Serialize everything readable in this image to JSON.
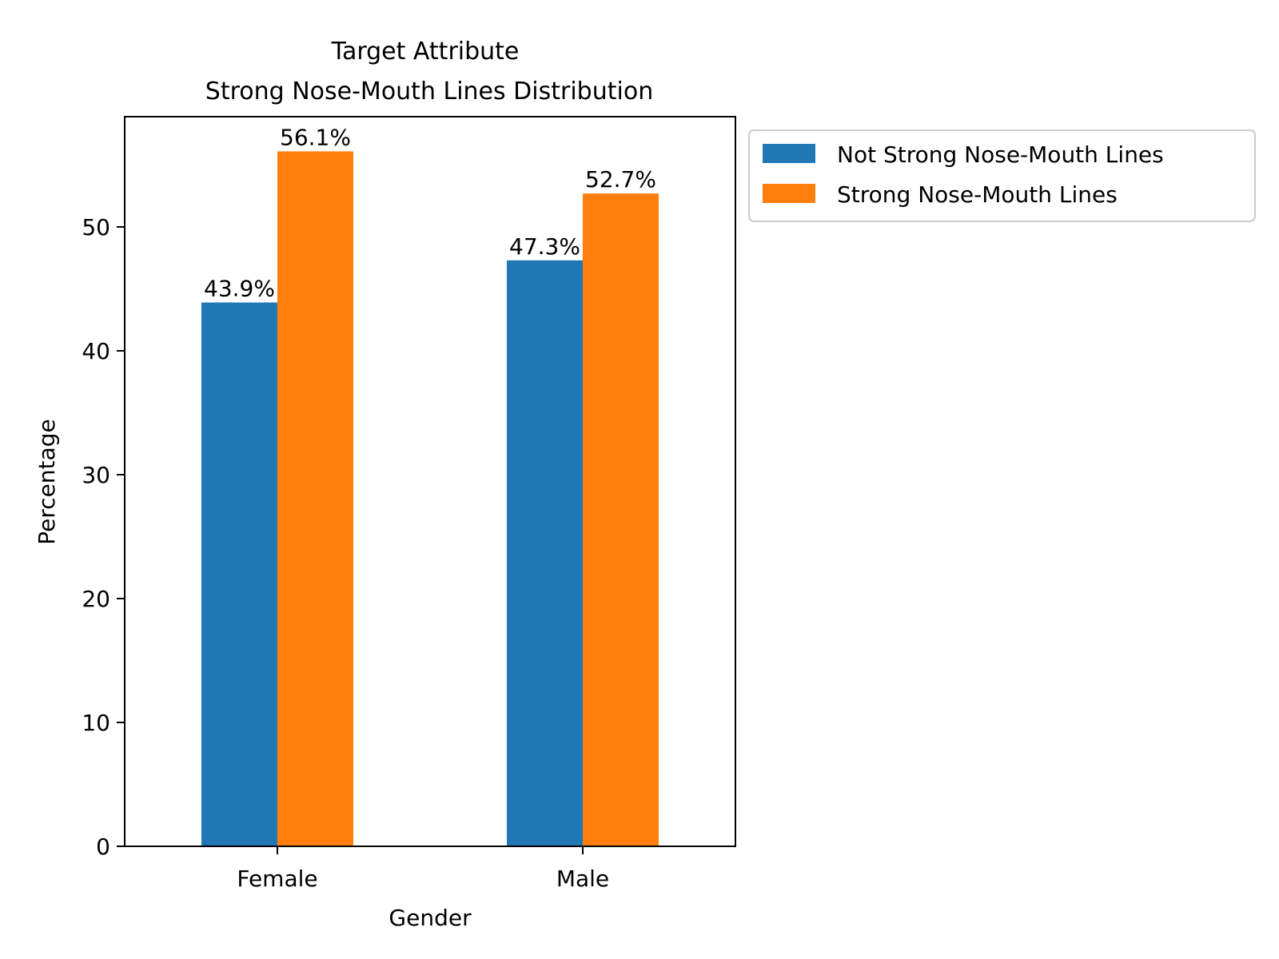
{
  "chart_data": {
    "type": "bar",
    "title_lines": [
      "Target Attribute",
      "Strong Nose-Mouth Lines Distribution"
    ],
    "xlabel": "Gender",
    "ylabel": "Percentage",
    "categories": [
      "Female",
      "Male"
    ],
    "series": [
      {
        "name": "Not Strong Nose-Mouth Lines",
        "color": "#1f77b4",
        "values": [
          43.9,
          47.3
        ],
        "labels": [
          "43.9%",
          "47.3%"
        ]
      },
      {
        "name": "Strong Nose-Mouth Lines",
        "color": "#ff7f0e",
        "values": [
          56.1,
          52.7
        ],
        "labels": [
          "56.1%",
          "52.7%"
        ]
      }
    ],
    "ylim": [
      0,
      58.9
    ],
    "yticks": [
      0,
      10,
      20,
      30,
      40,
      50
    ],
    "grid": false,
    "legend_position": "outside-top-right"
  }
}
